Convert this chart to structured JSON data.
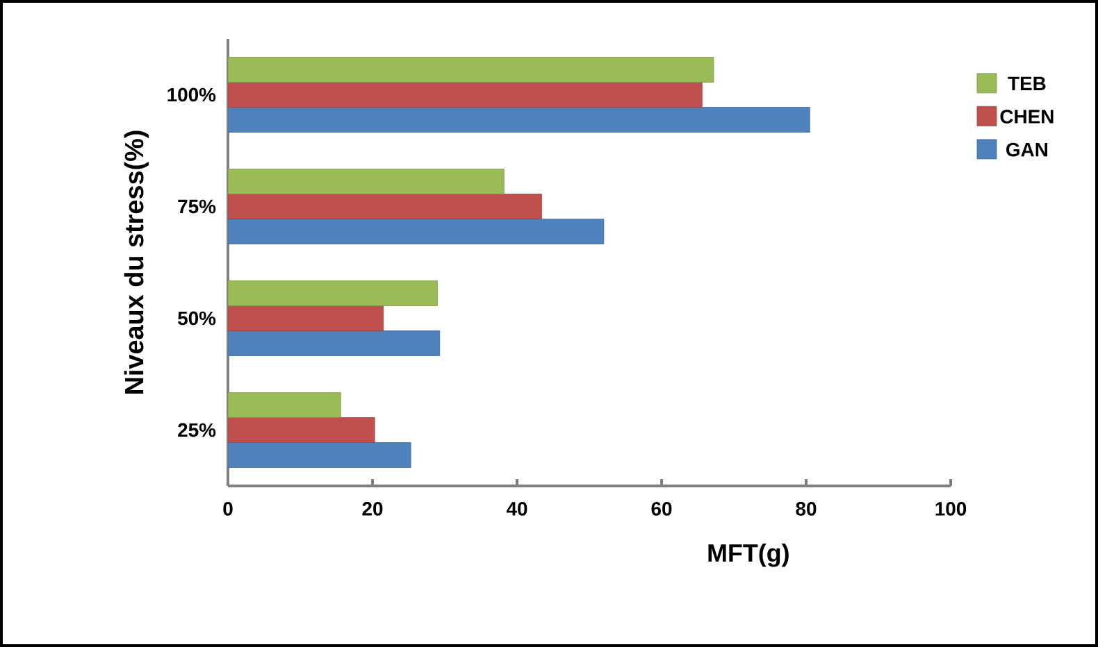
{
  "chart_data": {
    "type": "bar",
    "orientation": "horizontal",
    "xlabel": "MFT(g)",
    "ylabel": "Niveaux du stress(%)",
    "categories": [
      "100%",
      "75%",
      "50%",
      "25%"
    ],
    "series": [
      {
        "name": "GAN",
        "color": "#4f81bd",
        "values": [
          80.5,
          52.0,
          29.3,
          25.3
        ]
      },
      {
        "name": "CHEN",
        "color": "#c0504d",
        "values": [
          65.6,
          43.4,
          21.5,
          20.3
        ]
      },
      {
        "name": "TEB",
        "color": "#9bbb59",
        "values": [
          67.2,
          38.2,
          29.0,
          15.6
        ]
      }
    ],
    "xlim": [
      0,
      100
    ],
    "xticks": [
      0,
      20,
      40,
      60,
      80,
      100
    ],
    "legend": "right"
  }
}
